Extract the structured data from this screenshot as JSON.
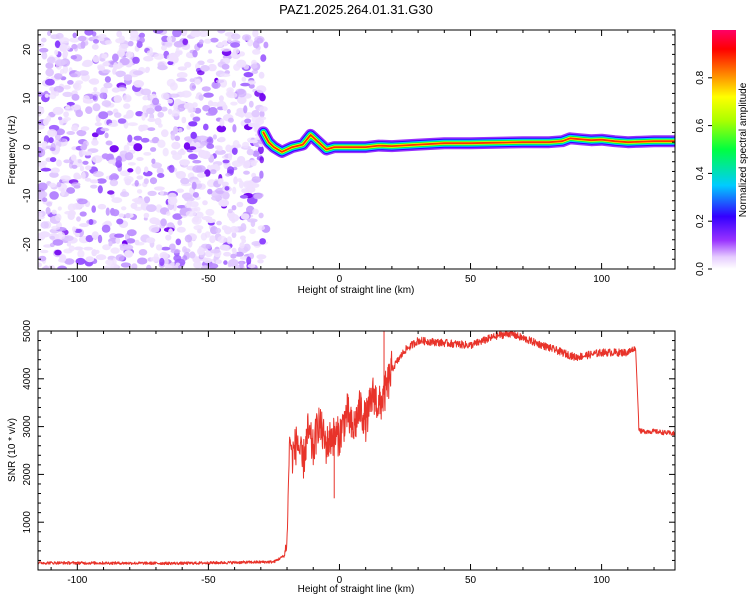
{
  "title": "PAZ1.2025.264.01.31.G30",
  "chart_data": [
    {
      "type": "heatmap",
      "xlabel": "Height of straight line (km)",
      "ylabel": "Frequency (Hz)",
      "xlim": [
        -115,
        128
      ],
      "ylim": [
        -25,
        24
      ],
      "xticks": [
        -100,
        -50,
        0,
        50,
        100
      ],
      "yticks": [
        -20,
        -10,
        0,
        10,
        20
      ],
      "noise_region": {
        "x_range": [
          -115,
          -28
        ],
        "y_range": [
          -25,
          24
        ],
        "description": "scattered low-amplitude violet speckle"
      },
      "ridge": {
        "x": [
          -29,
          -27,
          -25,
          -22,
          -18,
          -14,
          -11,
          -8,
          -5,
          -2,
          0,
          5,
          10,
          15,
          20,
          30,
          40,
          50,
          60,
          70,
          80,
          85,
          88,
          92,
          96,
          100,
          105,
          110,
          115,
          120,
          128
        ],
        "y": [
          3,
          1,
          0,
          -1,
          0,
          0.5,
          2.5,
          1,
          -0.5,
          0,
          0,
          0,
          0,
          0.3,
          0.2,
          0.5,
          0.8,
          0.8,
          0.9,
          1.0,
          1.0,
          1.2,
          1.8,
          1.6,
          1.4,
          1.5,
          1.2,
          1.0,
          1.1,
          1.2,
          1.2
        ]
      },
      "colorbar": {
        "label": "Normalized spectral amplitude",
        "range": [
          0,
          1
        ],
        "ticks": [
          "0.0",
          "0.2",
          "0.4",
          "0.6",
          "0.8"
        ],
        "colors": [
          "#ffffff",
          "#d9b3ff",
          "#8000ff",
          "#0000ff",
          "#00ffff",
          "#00ff00",
          "#ffff00",
          "#ff8000",
          "#ff0000",
          "#ff0080"
        ]
      }
    },
    {
      "type": "line",
      "xlabel": "Height of straight line (km)",
      "ylabel": "SNR (10 * v/v)",
      "xlim": [
        -115,
        128
      ],
      "ylim": [
        0,
        5000
      ],
      "xticks": [
        -100,
        -50,
        0,
        50,
        100
      ],
      "yticks": [
        1000,
        2000,
        3000,
        4000,
        5000
      ],
      "color": "#e8332a",
      "series": [
        {
          "name": "SNR",
          "x": [
            -115,
            -60,
            -25,
            -21,
            -20,
            -19,
            -18,
            -16,
            -14,
            -12,
            -10,
            -8,
            -5,
            -3,
            0,
            3,
            5,
            8,
            10,
            13,
            15,
            18,
            20,
            25,
            30,
            40,
            50,
            55,
            60,
            65,
            70,
            80,
            90,
            100,
            110,
            113,
            114,
            115,
            120,
            128
          ],
          "y": [
            150,
            140,
            170,
            300,
            600,
            2800,
            2400,
            2700,
            2200,
            2900,
            2500,
            3100,
            2600,
            2800,
            2800,
            3300,
            2900,
            3400,
            3100,
            3700,
            3400,
            3800,
            4200,
            4600,
            4800,
            4750,
            4700,
            4800,
            4900,
            4950,
            4850,
            4650,
            4450,
            4550,
            4550,
            4650,
            3000,
            2900,
            2900,
            2850
          ]
        }
      ],
      "annotations": [
        {
          "x": -2,
          "y": 1500,
          "note": "dip"
        },
        {
          "x": 17,
          "y": 5000,
          "note": "spike"
        }
      ]
    }
  ]
}
